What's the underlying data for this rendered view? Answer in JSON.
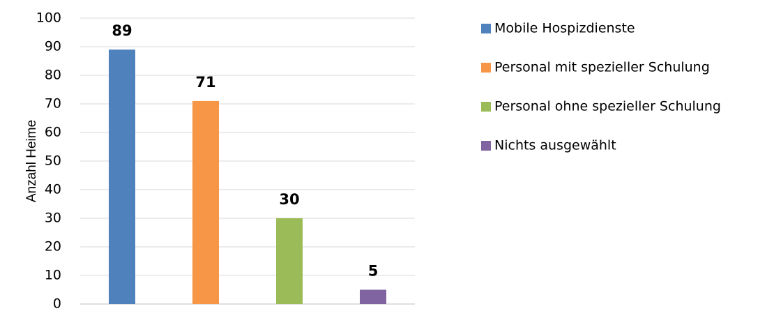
{
  "chart_data": {
    "type": "bar",
    "y_label": "Anzahl Heime",
    "categories": [
      null
    ],
    "series": [
      {
        "name": "Mobile Hospizdienste",
        "color": "#4f81bd",
        "values": [
          89
        ]
      },
      {
        "name": "Personal mit spezieller Schulung",
        "color": "#f79646",
        "values": [
          71
        ]
      },
      {
        "name": "Personal ohne spezieller Schulung",
        "color": "#9bbb59",
        "values": [
          30
        ]
      },
      {
        "name": "Nichts ausgewählt",
        "color": "#8064a2",
        "values": [
          5
        ]
      }
    ],
    "ylim": [
      0,
      100
    ],
    "yticks": [
      0,
      10,
      20,
      30,
      40,
      50,
      60,
      70,
      80,
      90,
      100
    ],
    "grid": true,
    "legend": "right"
  }
}
